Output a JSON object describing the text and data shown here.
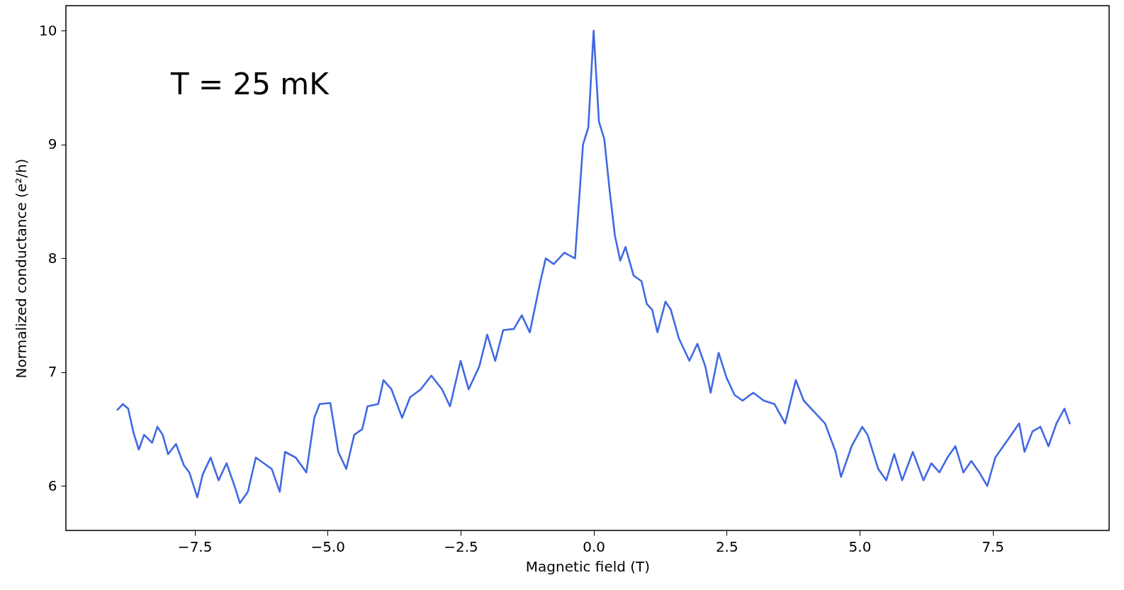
{
  "chart_data": {
    "type": "line",
    "xlabel": "Magnetic field (T)",
    "ylabel": "Normalized conductance (e²/h)",
    "annotations": [
      "T = 25 mK"
    ],
    "xlim": [
      -9.92,
      9.69
    ],
    "ylim": [
      5.61,
      10.22
    ],
    "xticks": [
      {
        "value": -7.5,
        "label": "−7.5"
      },
      {
        "value": -5,
        "label": "−5.0"
      },
      {
        "value": -2.5,
        "label": "−2.5"
      },
      {
        "value": 0,
        "label": "0.0"
      },
      {
        "value": 2.5,
        "label": "2.5"
      },
      {
        "value": 5,
        "label": "5.0"
      },
      {
        "value": 7.5,
        "label": "7.5"
      }
    ],
    "yticks": [
      6,
      7,
      8,
      9,
      10
    ],
    "grid": false,
    "x": [
      -8.95,
      -8.85,
      -8.75,
      -8.65,
      -8.55,
      -8.45,
      -8.3,
      -8.2,
      -8.1,
      -8.0,
      -7.85,
      -7.7,
      -7.6,
      -7.45,
      -7.35,
      -7.2,
      -7.05,
      -6.9,
      -6.75,
      -6.65,
      -6.5,
      -6.35,
      -6.2,
      -6.05,
      -5.9,
      -5.8,
      -5.6,
      -5.4,
      -5.25,
      -5.15,
      -4.95,
      -4.8,
      -4.65,
      -4.5,
      -4.35,
      -4.25,
      -4.05,
      -3.95,
      -3.8,
      -3.6,
      -3.45,
      -3.25,
      -3.05,
      -2.85,
      -2.7,
      -2.5,
      -2.35,
      -2.15,
      -2.0,
      -1.85,
      -1.7,
      -1.5,
      -1.35,
      -1.2,
      -1.0,
      -0.9,
      -0.75,
      -0.55,
      -0.35,
      -0.2,
      -0.1,
      0.0,
      0.1,
      0.2,
      0.3,
      0.4,
      0.5,
      0.6,
      0.75,
      0.9,
      1.0,
      1.1,
      1.2,
      1.35,
      1.45,
      1.6,
      1.8,
      1.95,
      2.1,
      2.2,
      2.35,
      2.5,
      2.65,
      2.8,
      3.0,
      3.2,
      3.4,
      3.6,
      3.8,
      3.95,
      4.15,
      4.35,
      4.55,
      4.65,
      4.85,
      5.05,
      5.15,
      5.35,
      5.5,
      5.65,
      5.8,
      6.0,
      6.2,
      6.35,
      6.5,
      6.65,
      6.8,
      6.95,
      7.1,
      7.25,
      7.4,
      7.55,
      7.7,
      7.85,
      8.0,
      8.1,
      8.25,
      8.4,
      8.55,
      8.7,
      8.85,
      8.95
    ],
    "series": [
      {
        "color": "#4169e1",
        "values": [
          6.67,
          6.72,
          6.68,
          6.47,
          6.32,
          6.45,
          6.38,
          6.52,
          6.45,
          6.28,
          6.37,
          6.18,
          6.12,
          5.9,
          6.1,
          6.25,
          6.05,
          6.2,
          6.0,
          5.85,
          5.95,
          6.25,
          6.2,
          6.15,
          5.95,
          6.3,
          6.25,
          6.12,
          6.6,
          6.72,
          6.73,
          6.3,
          6.15,
          6.45,
          6.5,
          6.7,
          6.72,
          6.93,
          6.85,
          6.6,
          6.78,
          6.85,
          6.97,
          6.85,
          6.7,
          7.1,
          6.85,
          7.05,
          7.33,
          7.1,
          7.37,
          7.38,
          7.5,
          7.35,
          7.8,
          8.0,
          7.95,
          8.05,
          8.0,
          9.0,
          9.15,
          10.0,
          9.2,
          9.05,
          8.6,
          8.2,
          7.98,
          8.1,
          7.85,
          7.8,
          7.6,
          7.55,
          7.35,
          7.62,
          7.55,
          7.3,
          7.1,
          7.25,
          7.05,
          6.82,
          7.17,
          6.95,
          6.8,
          6.75,
          6.82,
          6.75,
          6.72,
          6.55,
          6.93,
          6.75,
          6.65,
          6.55,
          6.3,
          6.08,
          6.35,
          6.52,
          6.45,
          6.15,
          6.05,
          6.28,
          6.05,
          6.3,
          6.05,
          6.2,
          6.12,
          6.25,
          6.35,
          6.12,
          6.22,
          6.12,
          6.0,
          6.25,
          6.35,
          6.45,
          6.55,
          6.3,
          6.48,
          6.52,
          6.35,
          6.55,
          6.68,
          6.55
        ]
      }
    ]
  }
}
